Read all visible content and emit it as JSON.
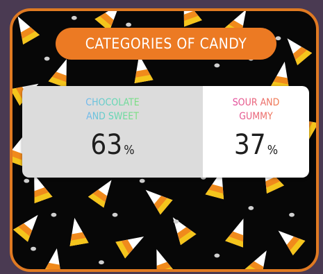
{
  "title": "CATEGORIES OF CANDY",
  "poll": {
    "options": [
      {
        "label": "CHOCOLATE\nAND SWEET",
        "percent": 63,
        "percent_text": "63",
        "selected": true
      },
      {
        "label": "SOUR AND\nGUMMY",
        "percent": 37,
        "percent_text": "37",
        "selected": false
      }
    ],
    "percent_symbol": "%"
  },
  "colors": {
    "accent": "#ec7a23",
    "frame_border": "#e07a22",
    "background": "#070707",
    "left_label_gradient": [
      "#6fb6f0",
      "#7fe07a"
    ],
    "right_label_gradient": [
      "#e24aa0",
      "#f07a4a"
    ]
  },
  "decoration": "candy-corn-pattern"
}
